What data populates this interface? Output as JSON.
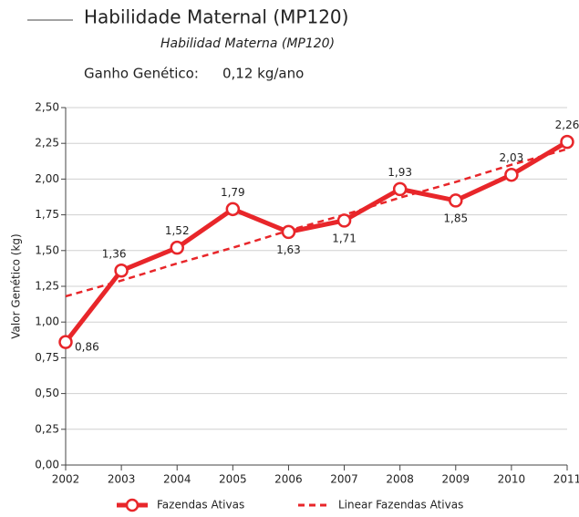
{
  "chart_data": {
    "type": "line",
    "title": "Habilidade Maternal (MP120)",
    "subtitle": "Habilidad Materna (MP120)",
    "gain_label": "Ganho Genético:",
    "gain_value": "0,12 kg/ano",
    "ylabel": "Valor Genético (kg)",
    "x": [
      2002,
      2003,
      2004,
      2005,
      2006,
      2007,
      2008,
      2009,
      2010,
      2011
    ],
    "xlim": [
      2002,
      2011
    ],
    "xticks": [
      2002,
      2003,
      2004,
      2005,
      2006,
      2007,
      2008,
      2009,
      2010,
      2011
    ],
    "ylim": [
      0,
      2.5
    ],
    "yticks": [
      {
        "value": 0,
        "label": "0,00"
      },
      {
        "value": 0.25,
        "label": "0,25"
      },
      {
        "value": 0.5,
        "label": "0,50"
      },
      {
        "value": 0.75,
        "label": "0,75"
      },
      {
        "value": 1,
        "label": "1,00"
      },
      {
        "value": 1.25,
        "label": "1,25"
      },
      {
        "value": 1.5,
        "label": "1,50"
      },
      {
        "value": 1.75,
        "label": "1,75"
      },
      {
        "value": 2,
        "label": "2,00"
      },
      {
        "value": 2.25,
        "label": "2,25"
      },
      {
        "value": 2.5,
        "label": "2,50"
      }
    ],
    "grid": true,
    "series": [
      {
        "name": "Fazendas Ativas",
        "color": "#e8262a",
        "values": [
          0.86,
          1.36,
          1.52,
          1.79,
          1.63,
          1.71,
          1.93,
          1.85,
          2.03,
          2.26
        ],
        "value_labels": [
          "0,86",
          "1,36",
          "1,52",
          "1,79",
          "1,63",
          "1,71",
          "1,93",
          "1,85",
          "2,03",
          "2,26"
        ]
      },
      {
        "name": "Linear Fazendas Ativas",
        "color": "#e8262a",
        "dashed": true,
        "values": [
          1.18,
          1.29,
          1.41,
          1.52,
          1.64,
          1.75,
          1.87,
          1.98,
          2.1,
          2.21
        ]
      }
    ]
  }
}
